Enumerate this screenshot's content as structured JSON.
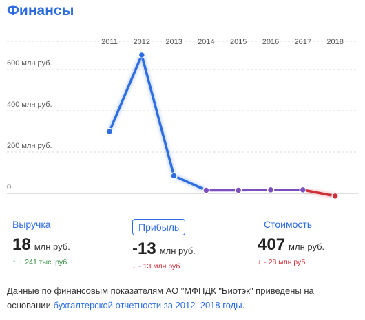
{
  "title": "Финансы",
  "chart_data": {
    "type": "line",
    "x": [
      "2011",
      "2012",
      "2013",
      "2014",
      "2015",
      "2016",
      "2017",
      "2018"
    ],
    "series": [
      {
        "values": [
          300,
          670,
          85,
          15,
          15,
          17,
          17,
          -13
        ]
      }
    ],
    "yticks": [
      {
        "value": 0,
        "label": "0"
      },
      {
        "value": 200,
        "label": "200 млн руб."
      },
      {
        "value": 400,
        "label": "400 млн руб."
      },
      {
        "value": 600,
        "label": "600 млн руб."
      }
    ],
    "ylim": [
      -30,
      830
    ],
    "grid": true,
    "colors": {
      "rising": "#2d6de0",
      "flat": "#7b4fc0",
      "negative": "#d0303a",
      "grid": "#d9d9d9",
      "zero_line": "#bfbfbf"
    }
  },
  "metrics": [
    {
      "label": "Выручка",
      "boxed": false,
      "value": "18",
      "unit": "млн руб.",
      "direction": "up",
      "arrow": "↑",
      "delta": "+ 241 тыс. руб."
    },
    {
      "label": "Прибыль",
      "boxed": true,
      "value": "-13",
      "unit": "млн руб.",
      "direction": "down",
      "arrow": "↓",
      "delta": "- 13 млн руб."
    },
    {
      "label": "Стоимость",
      "boxed": false,
      "value": "407",
      "unit": "млн руб.",
      "direction": "down",
      "arrow": "↓",
      "delta": "- 28 млн руб."
    }
  ],
  "footnote": {
    "text": "Данные по финансовым показателям АО \"МФПДК \"Биотэк\" приведены на основании",
    "link": "бухгалтерской отчетности за 2012–2018 годы",
    "end": "."
  }
}
